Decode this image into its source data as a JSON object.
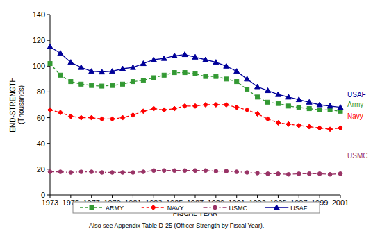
{
  "chart_data": {
    "type": "line",
    "x_label": "FISCAL YEAR",
    "y_label": "END-STRENGTH\n(Thousands)",
    "note": "Also see Appendix Table D-25 (Officer Strength by Fiscal Year).",
    "x": [
      1973,
      1974,
      1975,
      1976,
      1977,
      1978,
      1979,
      1980,
      1981,
      1982,
      1983,
      1984,
      1985,
      1986,
      1987,
      1988,
      1989,
      1990,
      1991,
      1992,
      1993,
      1994,
      1995,
      1996,
      1997,
      1998,
      1999,
      2000,
      2001
    ],
    "xlim": [
      1973,
      2001
    ],
    "xticks": [
      1973,
      1975,
      1977,
      1979,
      1981,
      1983,
      1985,
      1987,
      1989,
      1991,
      1993,
      1995,
      1997,
      1999,
      2001
    ],
    "ylim": [
      0,
      140
    ],
    "yticks": [
      0,
      20,
      40,
      60,
      80,
      100,
      120,
      140
    ],
    "grid": false,
    "legend": "bottom",
    "series": [
      {
        "name": "ARMY",
        "color": "#339933",
        "marker": "square",
        "line_style": "dashed",
        "values": [
          102,
          93,
          88,
          86,
          85,
          84.5,
          85,
          86,
          88,
          89,
          91,
          93,
          95,
          95,
          94,
          92,
          92,
          90,
          88,
          82,
          76,
          72,
          71,
          69,
          68,
          67,
          66,
          66,
          65
        ]
      },
      {
        "name": "NAVY",
        "color": "#ff0000",
        "marker": "diamond",
        "line_style": "dashed",
        "values": [
          66,
          64,
          61,
          60,
          60,
          59,
          59,
          60,
          62,
          65,
          67,
          66,
          67,
          69,
          69,
          70,
          70,
          70,
          68,
          66,
          63,
          59,
          56,
          55,
          54,
          53,
          52,
          51,
          52
        ]
      },
      {
        "name": "USMC",
        "color": "#993366",
        "marker": "circle",
        "line_style": "dash-dot",
        "values": [
          18,
          18,
          17.5,
          18,
          18,
          17.5,
          17.5,
          17.5,
          17.5,
          18,
          19,
          19,
          19,
          19,
          19,
          19,
          18.5,
          18.5,
          18,
          17.5,
          17,
          16.5,
          16.5,
          16,
          16.5,
          16.5,
          16.5,
          16,
          16.5
        ]
      },
      {
        "name": "USAF",
        "color": "#000099",
        "marker": "triangle",
        "line_style": "solid",
        "values": [
          115,
          110,
          103,
          99,
          96,
          95.5,
          96,
          98,
          99,
          102,
          105,
          106,
          108,
          109,
          107,
          105,
          103,
          100,
          96,
          90,
          84,
          81,
          78,
          76,
          74,
          72,
          70,
          69,
          68
        ]
      }
    ],
    "annotations": [
      {
        "text": "USAF",
        "x": 2001,
        "y": 78,
        "color": "#000099"
      },
      {
        "text": "Army",
        "x": 2001,
        "y": 70.5,
        "color": "#339933"
      },
      {
        "text": "Navy",
        "x": 2001,
        "y": 61.5,
        "color": "#ff0000"
      },
      {
        "text": "USMC",
        "x": 2001,
        "y": 30.5,
        "color": "#993366"
      }
    ]
  }
}
